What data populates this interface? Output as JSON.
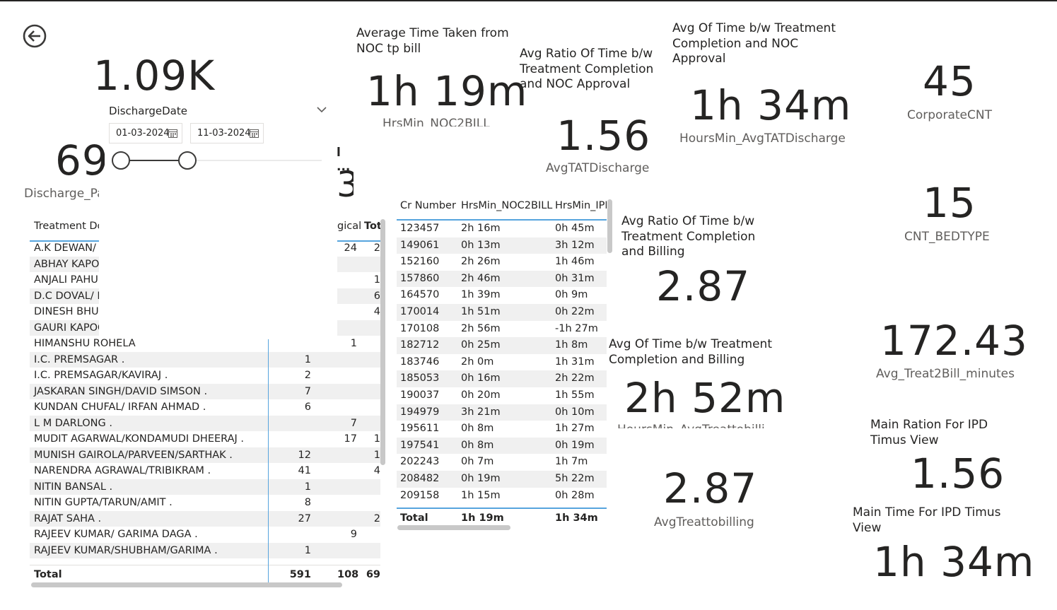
{
  "nav": {
    "back_icon": "arrow-left-circle-icon"
  },
  "cards": {
    "total_count": {
      "value": "1.09K"
    },
    "discharge": {
      "value": "69",
      "label": "Discharge_Pa"
    },
    "partial": {
      "title": "l ...",
      "value": "3"
    },
    "noc2bill": {
      "title": "Average Time Taken from NOC tp bill",
      "value": "1h 19m",
      "label": "HrsMin_NOC2BILL"
    },
    "ratio_noc": {
      "title": "Avg Ratio Of Time b/w Treatment Completion and NOC Approval",
      "value": "1.56",
      "label": "AvgTATDischarge"
    },
    "avg_noc": {
      "title": "Avg Of Time b/w Treatment Completion and NOC Approval",
      "value": "1h 34m",
      "label": "HoursMin_AvgTATDischarge"
    },
    "corporate": {
      "value": "45",
      "label": "CorporateCNT"
    },
    "bedtype": {
      "value": "15",
      "label": "CNT_BEDTYPE"
    },
    "ratio_billing": {
      "title": "Avg Ratio Of Time b/w Treatment Completion and Billing",
      "value": "2.87"
    },
    "avg_billing": {
      "title": "Avg Of Time b/w Treatment Completion and Billing",
      "value": "2h 52m",
      "label": "HoursMin_AvgTreattobilling"
    },
    "avg_treat2bill": {
      "value": "172.43",
      "label": "Avg_Treat2Bill_minutes"
    },
    "avgtreattobilling": {
      "value": "2.87",
      "label": "AvgTreattobilling"
    },
    "main_ratio_ipd": {
      "title": "Main Ration For IPD Timus View",
      "value": "1.56"
    },
    "main_time_ipd": {
      "title": "Main Time For IPD Timus View",
      "value": "1h 34m"
    }
  },
  "slicer": {
    "title": "DischargeDate",
    "start": "01-03-2024",
    "end": "11-03-2024",
    "chevron_icon": "chevron-down-icon",
    "calendar_icon": "calendar-icon"
  },
  "treatment_table": {
    "headers": {
      "name": "Treatment Do",
      "col2": "gical",
      "col3": "Tot"
    },
    "rows": [
      {
        "name": "A.K DEWAN/ V",
        "c1": "",
        "c2": "24",
        "c3": "2"
      },
      {
        "name": "ABHAY KAPO(",
        "c1": "",
        "c2": "",
        "c3": ""
      },
      {
        "name": "ANJALI PAHU.",
        "c1": "",
        "c2": "",
        "c3": "1"
      },
      {
        "name": "D.C DOVAL/ P",
        "c1": "",
        "c2": "",
        "c3": "6"
      },
      {
        "name": "DINESH BHUF",
        "c1": "",
        "c2": "",
        "c3": "4"
      },
      {
        "name": "GAURI KAPOC",
        "c1": "",
        "c2": "",
        "c3": ""
      },
      {
        "name": "HIMANSHU ROHELA",
        "c1": "",
        "c2": "1",
        "c3": ""
      },
      {
        "name": "I.C. PREMSAGAR .",
        "c1": "1",
        "c2": "",
        "c3": ""
      },
      {
        "name": "I.C. PREMSAGAR/KAVIRAJ .",
        "c1": "2",
        "c2": "",
        "c3": ""
      },
      {
        "name": "JASKARAN SINGH/DAVID SIMSON .",
        "c1": "7",
        "c2": "",
        "c3": ""
      },
      {
        "name": "KUNDAN CHUFAL/ IRFAN AHMAD .",
        "c1": "6",
        "c2": "",
        "c3": ""
      },
      {
        "name": "L M DARLONG .",
        "c1": "",
        "c2": "7",
        "c3": ""
      },
      {
        "name": "MUDIT AGARWAL/KONDAMUDI DHEERAJ .",
        "c1": "",
        "c2": "17",
        "c3": "1"
      },
      {
        "name": "MUNISH GAIROLA/PARVEEN/SARTHAK .",
        "c1": "12",
        "c2": "",
        "c3": "1"
      },
      {
        "name": "NARENDRA AGRAWAL/TRIBIKRAM .",
        "c1": "41",
        "c2": "",
        "c3": "4"
      },
      {
        "name": "NITIN BANSAL .",
        "c1": "1",
        "c2": "",
        "c3": ""
      },
      {
        "name": "NITIN GUPTA/TARUN/AMIT .",
        "c1": "8",
        "c2": "",
        "c3": ""
      },
      {
        "name": "RAJAT SAHA .",
        "c1": "27",
        "c2": "",
        "c3": "2"
      },
      {
        "name": "RAJEEV KUMAR/ GARIMA DAGA .",
        "c1": "",
        "c2": "9",
        "c3": ""
      },
      {
        "name": "RAJEEV KUMAR/SHUBHAM/GARIMA .",
        "c1": "1",
        "c2": "",
        "c3": ""
      }
    ],
    "total": {
      "name": "Total",
      "c1": "591",
      "c2": "108",
      "c3": "69"
    }
  },
  "cr_table": {
    "headers": {
      "cr": "Cr Number",
      "noc2bill": "HrsMin_NOC2BILL",
      "ipd": "HrsMin_IPD"
    },
    "rows": [
      {
        "cr": "123457",
        "noc2bill": "2h 16m",
        "ipd": "0h 45m"
      },
      {
        "cr": "149061",
        "noc2bill": "0h 13m",
        "ipd": "3h 12m"
      },
      {
        "cr": "152160",
        "noc2bill": "2h 26m",
        "ipd": "1h 46m"
      },
      {
        "cr": "157860",
        "noc2bill": "2h 46m",
        "ipd": "0h 31m"
      },
      {
        "cr": "164570",
        "noc2bill": "1h 39m",
        "ipd": "0h 9m"
      },
      {
        "cr": "170014",
        "noc2bill": "1h 51m",
        "ipd": "0h 22m"
      },
      {
        "cr": "170108",
        "noc2bill": "2h 56m",
        "ipd": "-1h 27m"
      },
      {
        "cr": "182712",
        "noc2bill": "0h 25m",
        "ipd": "1h 8m"
      },
      {
        "cr": "183746",
        "noc2bill": "2h 0m",
        "ipd": "1h 31m"
      },
      {
        "cr": "185053",
        "noc2bill": "0h 16m",
        "ipd": "2h 22m"
      },
      {
        "cr": "190037",
        "noc2bill": "0h 20m",
        "ipd": "1h 55m"
      },
      {
        "cr": "194979",
        "noc2bill": "3h 21m",
        "ipd": "0h 10m"
      },
      {
        "cr": "195611",
        "noc2bill": "0h 8m",
        "ipd": "1h 27m"
      },
      {
        "cr": "197541",
        "noc2bill": "0h 8m",
        "ipd": "0h 19m"
      },
      {
        "cr": "202243",
        "noc2bill": "0h 7m",
        "ipd": "1h 7m"
      },
      {
        "cr": "208482",
        "noc2bill": "0h 19m",
        "ipd": "5h 22m"
      },
      {
        "cr": "209158",
        "noc2bill": "1h 15m",
        "ipd": "0h 28m"
      }
    ],
    "total": {
      "cr": "Total",
      "noc2bill": "1h 19m",
      "ipd": "1h 34m"
    }
  }
}
